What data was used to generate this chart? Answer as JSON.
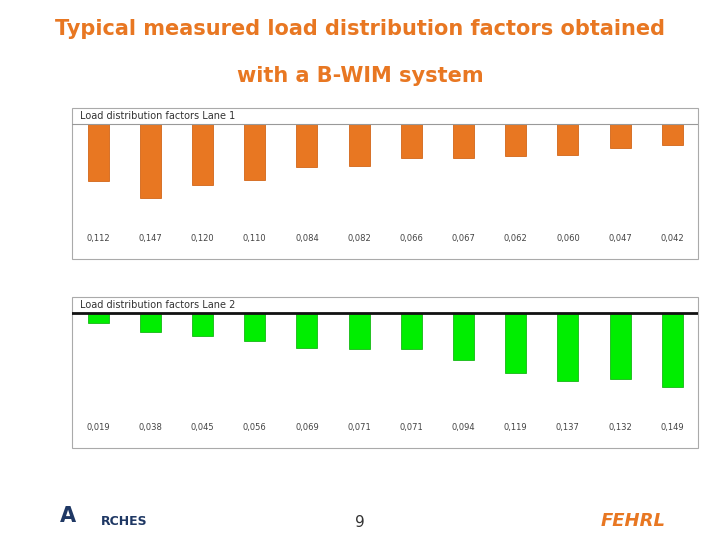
{
  "title_line1": "Typical measured load distribution factors obtained",
  "title_line2": "with a B-WIM system",
  "title_color": "#E87722",
  "title_fontsize": 15,
  "bg_color": "#FFFFFF",
  "panel_bg": "#E8E8E8",
  "mid_bg": "#C8CCDA",
  "lane1_label": "Load distribution factors Lane 1",
  "lane2_label": "Load distribution factors Lane 2",
  "lane1_values": [
    0.112,
    0.147,
    0.12,
    0.11,
    0.084,
    0.082,
    0.066,
    0.067,
    0.062,
    0.06,
    0.047,
    0.042
  ],
  "lane1_labels": [
    "0,112",
    "0,147",
    "0,120",
    "0,110",
    "0,084",
    "0,082",
    "0,066",
    "0,067",
    "0,062",
    "0,060",
    "0,047",
    "0,042"
  ],
  "lane1_color": "#E87722",
  "lane2_values": [
    0.019,
    0.038,
    0.045,
    0.056,
    0.069,
    0.071,
    0.071,
    0.094,
    0.119,
    0.137,
    0.132,
    0.149
  ],
  "lane2_labels": [
    "0,019",
    "0,038",
    "0,045",
    "0,056",
    "0,069",
    "0,071",
    "0,071",
    "0,094",
    "0,119",
    "0,137",
    "0,132",
    "0,149"
  ],
  "lane2_color": "#00EE00",
  "separator_color": "#1F3864",
  "page_number": "9",
  "box_edge": "#AAAAAA",
  "baseline_color1": "#999999",
  "baseline_color2": "#111111"
}
